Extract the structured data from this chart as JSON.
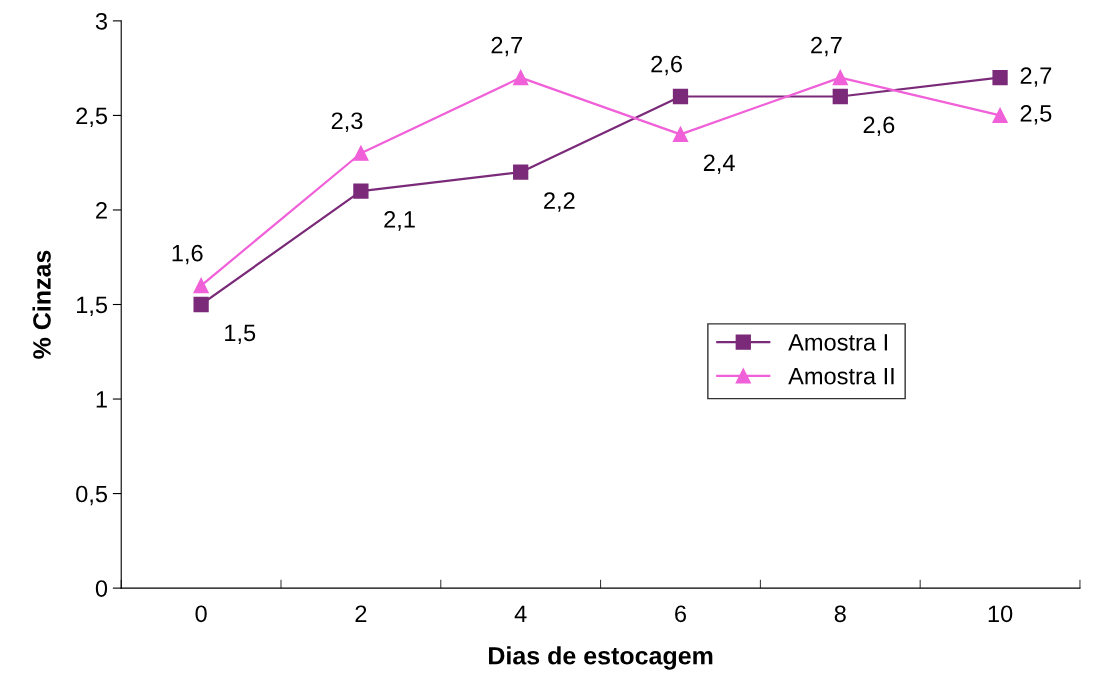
{
  "chart_data": {
    "type": "line",
    "xlabel": "Dias de estocagem",
    "ylabel": "% Cinzas",
    "categories": [
      "0",
      "2",
      "4",
      "6",
      "8",
      "10"
    ],
    "series": [
      {
        "name": "Amostra I",
        "color": "#7a2a78",
        "marker": "square",
        "values": [
          1.5,
          2.1,
          2.2,
          2.6,
          2.6,
          2.7
        ],
        "value_labels": [
          "1,5",
          "2,1",
          "2,2",
          "2,6",
          "2,6",
          "2,7"
        ]
      },
      {
        "name": "Amostra II",
        "color": "#f060d8",
        "marker": "triangle",
        "values": [
          1.6,
          2.3,
          2.7,
          2.4,
          2.7,
          2.5
        ],
        "value_labels": [
          "1,6",
          "2,3",
          "2,7",
          "2,4",
          "2,7",
          "2,5"
        ]
      }
    ],
    "ylim": [
      0,
      3
    ],
    "yticks": [
      0,
      {
        "value": 0.5,
        "label": "0,5"
      },
      1,
      {
        "value": 1.5,
        "label": "1,5"
      },
      2,
      {
        "value": 2.5,
        "label": "2,5"
      },
      3
    ],
    "grid": false,
    "legend": "right",
    "line_style": "solid"
  }
}
